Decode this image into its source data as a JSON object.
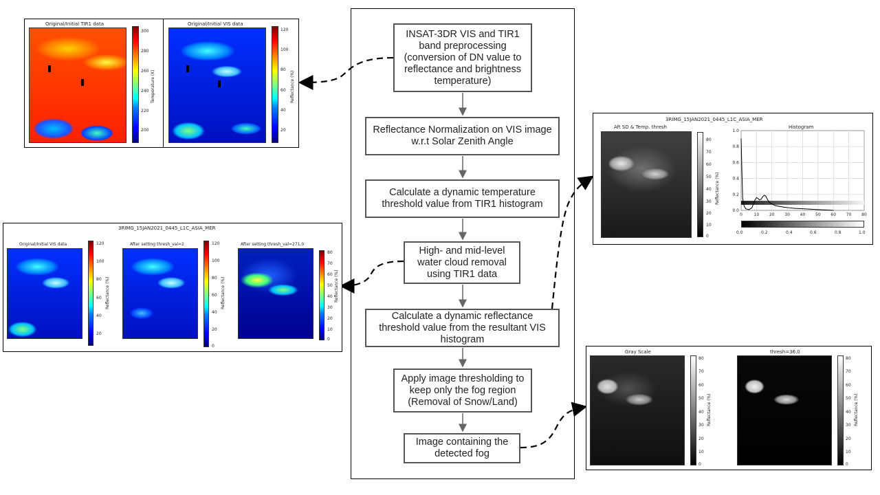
{
  "flowchart": {
    "steps": [
      "INSAT-3DR VIS and TIR1 band preprocessing (conversion of DN value to reflectance and brightness temperature)",
      "Reflectance Normalization on VIS image w.r.t Solar Zenith Angle",
      "Calculate a dynamic temperature threshold value from TIR1 histogram",
      "High- and mid-level water cloud removal using TIR1 data",
      "Calculate a dynamic reflectance threshold value from the resultant VIS histogram",
      "Apply image thresholding to keep only the fog region (Removal of Snow/Land)",
      "Image containing the detected fog"
    ]
  },
  "panel1": {
    "tir_title": "Original/Initial TIR1 data",
    "tir_cbar_label": "Temperature (K)",
    "tir_ticks": [
      "300",
      "280",
      "260",
      "240",
      "220",
      "200"
    ],
    "vis_title": "Original/Initial VIS data",
    "vis_cbar_label": "Reflectance (%)",
    "vis_ticks": [
      "120",
      "100",
      "80",
      "60",
      "40",
      "20"
    ]
  },
  "panel2": {
    "suptitle": "3RIMG_15JAN2021_0445_L1C_ASIA_MER",
    "sub1_title": "Original/Initial VIS data",
    "sub1_ticks": [
      "120",
      "100",
      "80",
      "60",
      "40",
      "20"
    ],
    "sub2_title": "After setting thresh_val=2",
    "sub2_ticks": [
      "120",
      "100",
      "80",
      "60",
      "40",
      "20",
      "0"
    ],
    "sub3_title": "After setting thresh_val=271.0",
    "sub3_ticks": [
      "80",
      "70",
      "60",
      "50",
      "40",
      "30",
      "20",
      "10",
      "0"
    ],
    "cbar_label": "Reflectance (%)"
  },
  "panel3": {
    "suptitle": "3RIMG_15JAN2021_0445_L1C_ASIA_MER",
    "img_title": "Aft SD & Temp. thresh",
    "hist_title": "Histogram",
    "cbar_label": "Reflectance (%)",
    "cbar_ticks": [
      "80",
      "70",
      "60",
      "50",
      "40",
      "30",
      "20",
      "10",
      "0"
    ],
    "hist_y_ticks": [
      "1.0",
      "0.8",
      "0.6",
      "0.4",
      "0.2",
      "0.0"
    ],
    "hist_x_ticks": [
      "0",
      "10",
      "20",
      "30",
      "40",
      "50",
      "60",
      "70",
      "80"
    ],
    "hcbar_ticks": [
      "0.0",
      "0.2",
      "0.4",
      "0.6",
      "0.8",
      "1.0"
    ]
  },
  "panel4": {
    "sub1_title": "Gray Scale",
    "sub2_title": "thresh=36.0",
    "cbar_label": "Reflectance (%)",
    "cbar_ticks": [
      "80",
      "70",
      "60",
      "50",
      "40",
      "30",
      "20",
      "10",
      "0"
    ]
  },
  "chart_data": {
    "type": "line",
    "title": "Histogram",
    "xlabel": "",
    "ylabel": "",
    "xlim": [
      0,
      80
    ],
    "ylim": [
      0,
      1.0
    ],
    "grid": true,
    "x": [
      0,
      0.5,
      1,
      2,
      3,
      5,
      7,
      8,
      9,
      10,
      11,
      12,
      13,
      14,
      15,
      16,
      17,
      18,
      19,
      20,
      22,
      25,
      28,
      30,
      35,
      40,
      45,
      50,
      55,
      60
    ],
    "series": [
      {
        "values": [
          0.9,
          0.5,
          0.15,
          0.05,
          0.02,
          0.01,
          0.03,
          0.08,
          0.13,
          0.16,
          0.15,
          0.13,
          0.14,
          0.17,
          0.19,
          0.18,
          0.14,
          0.11,
          0.09,
          0.08,
          0.06,
          0.05,
          0.04,
          0.035,
          0.025,
          0.02,
          0.015,
          0.01,
          0.005,
          0.0
        ]
      }
    ]
  }
}
